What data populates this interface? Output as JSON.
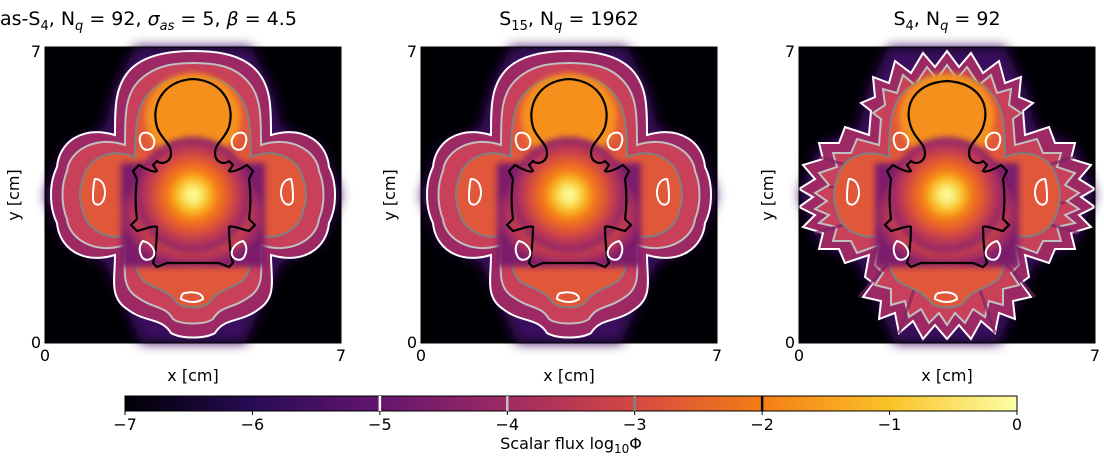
{
  "chart_data": [
    {
      "type": "heatmap",
      "title": "as-S₄, Nₙ = 92, σₐₛ = 5, β = 4.5",
      "title_parts": [
        "as-S",
        "4",
        ", N",
        "q",
        " = 92, ",
        "σ",
        "as",
        " = 5, ",
        "β",
        " = 4.5"
      ],
      "xlabel": "x [cm]",
      "ylabel": "y [cm]",
      "x_ticks": [
        "0",
        "7"
      ],
      "y_ticks": [
        "0",
        "7"
      ],
      "xlim": [
        0,
        7
      ],
      "ylim": [
        0,
        7
      ],
      "quadrature_points": 92,
      "ray_effects": false
    },
    {
      "type": "heatmap",
      "title": "S₁₅, Nₙ = 1962",
      "title_parts": [
        "S",
        "15",
        ", N",
        "q",
        " = 1962"
      ],
      "xlabel": "x [cm]",
      "ylabel": "y [cm]",
      "x_ticks": [
        "0",
        "7"
      ],
      "y_ticks": [
        "0",
        "7"
      ],
      "xlim": [
        0,
        7
      ],
      "ylim": [
        0,
        7
      ],
      "quadrature_points": 1962,
      "ray_effects": false
    },
    {
      "type": "heatmap",
      "title": "S₄, Nₙ = 92",
      "title_parts": [
        "S",
        "4",
        ", N",
        "q",
        " = 92"
      ],
      "xlabel": "x [cm]",
      "ylabel": "y [cm]",
      "x_ticks": [
        "0",
        "7"
      ],
      "y_ticks": [
        "0",
        "7"
      ],
      "xlim": [
        0,
        7
      ],
      "ylim": [
        0,
        7
      ],
      "quadrature_points": 92,
      "ray_effects": true
    }
  ],
  "colorbar": {
    "label": "Scalar flux log₁₀Φ",
    "label_parts": [
      "Scalar flux log",
      "10",
      "Φ"
    ],
    "range": [
      -7,
      0
    ],
    "ticks": [
      {
        "value": -7,
        "label": "−7"
      },
      {
        "value": -6,
        "label": "−6"
      },
      {
        "value": -5,
        "label": "−5"
      },
      {
        "value": -4,
        "label": "−4"
      },
      {
        "value": -3,
        "label": "−3"
      },
      {
        "value": -2,
        "label": "−2"
      },
      {
        "value": -1,
        "label": "−1"
      },
      {
        "value": 0,
        "label": "0"
      }
    ],
    "contour_levels": [
      {
        "value": -5,
        "color": "#ffffff"
      },
      {
        "value": -4,
        "color": "#c0c0c0"
      },
      {
        "value": -3,
        "color": "#808080"
      },
      {
        "value": -2,
        "color": "#000000"
      }
    ],
    "colormap": [
      "#000004",
      "#280b54",
      "#65156e",
      "#9f2a63",
      "#d44842",
      "#f57d15",
      "#fac228",
      "#fcffa4"
    ]
  }
}
